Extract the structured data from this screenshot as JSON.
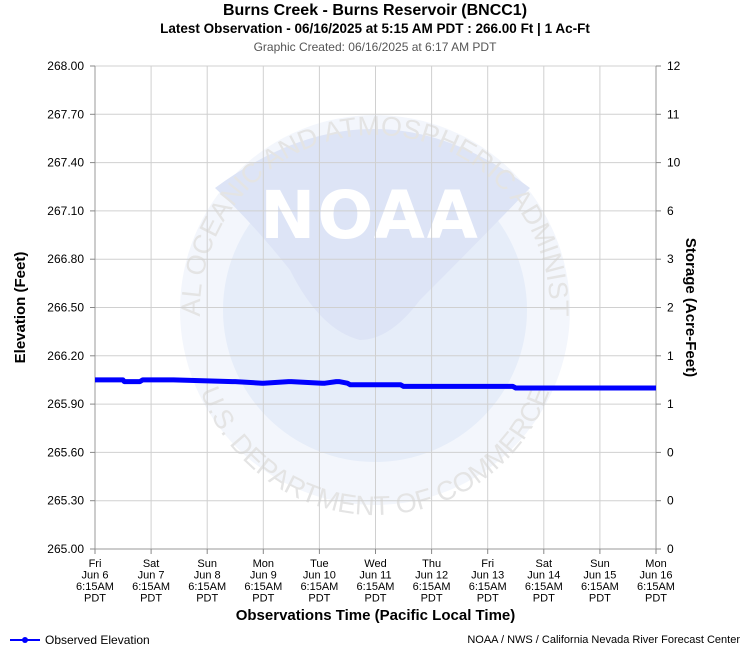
{
  "header": {
    "title": "Burns Creek - Burns Reservoir (BNCC1)",
    "subtitle": "Latest Observation - 06/16/2025 at 5:15 AM PDT : 266.00 Ft | 1 Ac-Ft",
    "created": "Graphic Created: 06/16/2025 at 6:17 AM PDT"
  },
  "watermark": {
    "logo_text": "NOAA",
    "ring_text": "NATIONAL OCEANIC AND ATMOSPHERIC ADMINISTRATION",
    "ring_text_bottom": "U.S. DEPARTMENT OF COMMERCE"
  },
  "footer": {
    "legend_label": "Observed Elevation",
    "credit": "NOAA / NWS / California Nevada River Forecast Center"
  },
  "colors": {
    "series": "#0000ff",
    "grid": "#d0d0d0",
    "watermark": "#eef2fb"
  },
  "chart_data": {
    "type": "line",
    "xlabel": "Observations Time (Pacific Local Time)",
    "ylabel": "Elevation (Feet)",
    "y2label": "Storage (Acre-Feet)",
    "ylim": [
      265.0,
      268.0
    ],
    "yticks": [
      "265.00",
      "265.30",
      "265.60",
      "265.90",
      "266.20",
      "266.50",
      "266.80",
      "267.10",
      "267.40",
      "267.70",
      "268.00"
    ],
    "y2ticks": [
      "0",
      "0",
      "0",
      "1",
      "1",
      "2",
      "3",
      "6",
      "10",
      "11",
      "12"
    ],
    "xticks": [
      [
        "Fri",
        "Jun 6",
        "6:15AM",
        "PDT"
      ],
      [
        "Sat",
        "Jun 7",
        "6:15AM",
        "PDT"
      ],
      [
        "Sun",
        "Jun 8",
        "6:15AM",
        "PDT"
      ],
      [
        "Mon",
        "Jun 9",
        "6:15AM",
        "PDT"
      ],
      [
        "Tue",
        "Jun 10",
        "6:15AM",
        "PDT"
      ],
      [
        "Wed",
        "Jun 11",
        "6:15AM",
        "PDT"
      ],
      [
        "Thu",
        "Jun 12",
        "6:15AM",
        "PDT"
      ],
      [
        "Fri",
        "Jun 13",
        "6:15AM",
        "PDT"
      ],
      [
        "Sat",
        "Jun 14",
        "6:15AM",
        "PDT"
      ],
      [
        "Sun",
        "Jun 15",
        "6:15AM",
        "PDT"
      ],
      [
        "Mon",
        "Jun 16",
        "6:15AM",
        "PDT"
      ]
    ],
    "grid": true,
    "legend_position": "bottom-left",
    "series": [
      {
        "name": "Observed Elevation",
        "x": [
          0,
          0.5,
          0.52,
          0.8,
          0.85,
          1.4,
          2.45,
          2.5,
          2.98,
          3.0,
          3.45,
          3.5,
          4.05,
          4.1,
          4.3,
          4.35,
          4.5,
          4.55,
          5.45,
          5.5,
          6.0,
          6.5,
          7.0,
          7.45,
          7.5,
          8.0,
          8.5,
          9.0,
          10.0
        ],
        "values": [
          266.05,
          266.05,
          266.04,
          266.04,
          266.05,
          266.05,
          266.04,
          266.04,
          266.03,
          266.03,
          266.04,
          266.04,
          266.03,
          266.03,
          266.04,
          266.04,
          266.03,
          266.02,
          266.02,
          266.01,
          266.01,
          266.01,
          266.01,
          266.01,
          266.0,
          266.0,
          266.0,
          266.0,
          266.0
        ]
      }
    ]
  }
}
